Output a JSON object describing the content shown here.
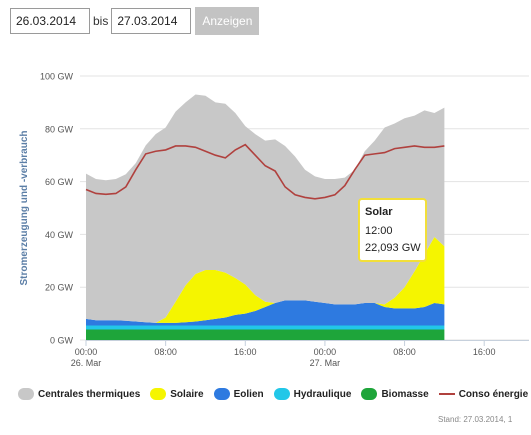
{
  "form": {
    "from_value": "26.03.2014",
    "bis_label": "bis",
    "to_value": "27.03.2014",
    "show_label": "Anzeigen"
  },
  "footer": {
    "stand_text": "Stand: 27.03.2014, 1"
  },
  "colors": {
    "thermal": "#c8c8c8",
    "solar": "#f5f500",
    "wind": "#2e7ae0",
    "hydro": "#22c7e8",
    "biomass": "#1ea53a",
    "consumption": "#b0413e"
  },
  "chart_data": {
    "type": "area",
    "stacked": true,
    "ylabel": "Stromerzeugung und -verbrauch",
    "ylim": [
      0,
      100
    ],
    "y_ticks": [
      "0 GW",
      "20 GW",
      "40 GW",
      "60 GW",
      "80 GW",
      "100 GW"
    ],
    "x_tick_labels": [
      {
        "hour": 0,
        "time": "00:00",
        "date": "26. Mar"
      },
      {
        "hour": 8,
        "time": "08:00",
        "date": ""
      },
      {
        "hour": 16,
        "time": "16:00",
        "date": ""
      },
      {
        "hour": 24,
        "time": "00:00",
        "date": "27. Mar"
      },
      {
        "hour": 32,
        "time": "08:00",
        "date": ""
      },
      {
        "hour": 40,
        "time": "16:00",
        "date": ""
      }
    ],
    "x_range_hours": [
      0,
      44.5
    ],
    "x_hours": [
      0,
      1,
      2,
      3,
      4,
      5,
      6,
      7,
      8,
      9,
      10,
      11,
      12,
      13,
      14,
      15,
      16,
      17,
      18,
      19,
      20,
      21,
      22,
      23,
      24,
      25,
      26,
      27,
      28,
      29,
      30,
      31,
      32,
      33,
      34,
      35,
      36
    ],
    "series": [
      {
        "name": "Biomasse",
        "color_key": "biomass",
        "values": [
          4,
          4,
          4,
          4,
          4,
          4,
          4,
          4,
          4,
          4,
          4,
          4,
          4,
          4,
          4,
          4,
          4,
          4,
          4,
          4,
          4,
          4,
          4,
          4,
          4,
          4,
          4,
          4,
          4,
          4,
          4,
          4,
          4,
          4,
          4,
          4,
          4
        ]
      },
      {
        "name": "Hydraulique",
        "color_key": "hydro",
        "values": [
          1.5,
          1.5,
          1.5,
          1.5,
          1.5,
          1.5,
          1.5,
          1.5,
          1.5,
          1.5,
          1.5,
          1.5,
          1.5,
          1.5,
          1.5,
          1.5,
          1.5,
          1.5,
          1.5,
          1.5,
          1.5,
          1.5,
          1.5,
          1.5,
          1.5,
          1.5,
          1.5,
          1.5,
          1.5,
          1.5,
          1.5,
          1.5,
          1.5,
          1.5,
          1.5,
          1.5,
          1.5
        ]
      },
      {
        "name": "Eolien",
        "color_key": "wind",
        "values": [
          2.5,
          2,
          2,
          2,
          1.8,
          1.5,
          1.2,
          1,
          1,
          1,
          1.2,
          1.5,
          2,
          2.5,
          3,
          4,
          4.5,
          5.5,
          7,
          8.5,
          9.5,
          9.5,
          9.5,
          9,
          8.5,
          8,
          8,
          8,
          8.5,
          8.5,
          7,
          6.5,
          6.5,
          6.5,
          7,
          8.5,
          8
        ]
      },
      {
        "name": "Solaire",
        "color_key": "solar",
        "values": [
          0,
          0,
          0,
          0,
          0,
          0,
          0,
          0,
          2,
          8,
          14,
          18,
          19,
          18.5,
          17,
          14,
          11,
          6,
          2,
          0,
          0,
          0,
          0,
          0,
          0,
          0,
          0,
          0,
          0,
          0,
          1,
          4,
          8,
          14,
          20,
          25,
          22
        ]
      },
      {
        "name": "Centrales thermiques",
        "color_key": "thermal",
        "values": [
          55,
          53.5,
          53,
          53.5,
          55.5,
          60,
          67,
          71.5,
          72,
          72,
          69.3,
          68,
          66,
          63.5,
          64,
          62.5,
          60,
          61,
          61,
          62,
          58.5,
          54.5,
          49.5,
          47.5,
          47,
          47.5,
          48,
          51,
          57.5,
          61.5,
          67,
          66,
          64,
          59,
          54.5,
          47,
          52.5
        ]
      },
      {
        "name": "Conso énergie",
        "color_key": "consumption",
        "type": "line",
        "values": [
          57,
          55.5,
          55.2,
          55.5,
          58,
          64.5,
          70.5,
          71.5,
          72,
          73.5,
          73.5,
          73,
          71.5,
          70,
          69,
          72,
          74,
          70,
          66,
          64,
          58,
          55,
          54,
          53.5,
          54,
          55,
          58.5,
          64.5,
          70,
          70.5,
          71,
          72.5,
          73,
          73.5,
          73,
          73,
          73.5
        ]
      }
    ],
    "tooltip": {
      "series": "Solar",
      "time": "12:00",
      "value": "22,093 GW"
    },
    "legend_position": "bottom",
    "grid": "horizontal"
  }
}
